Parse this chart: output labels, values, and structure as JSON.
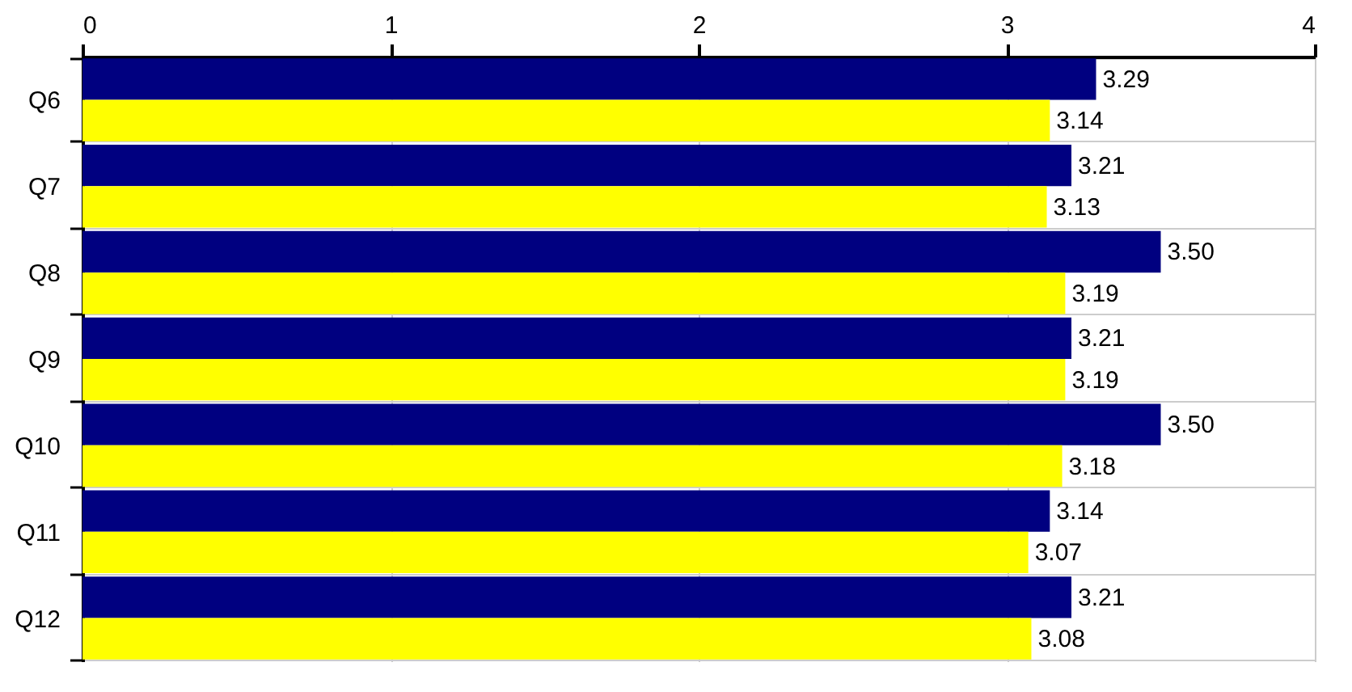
{
  "chart_data": {
    "type": "bar",
    "orientation": "horizontal",
    "categories": [
      "Q6",
      "Q7",
      "Q8",
      "Q9",
      "Q10",
      "Q11",
      "Q12"
    ],
    "series": [
      {
        "color": "#000080",
        "values": [
          3.29,
          3.21,
          3.5,
          3.21,
          3.5,
          3.14,
          3.21
        ],
        "value_labels": [
          "3.29",
          "3.21",
          "3.50",
          "3.21",
          "3.50",
          "3.14",
          "3.21"
        ]
      },
      {
        "color": "#ffff00",
        "values": [
          3.14,
          3.13,
          3.19,
          3.19,
          3.18,
          3.07,
          3.08
        ],
        "value_labels": [
          "3.14",
          "3.13",
          "3.19",
          "3.19",
          "3.18",
          "3.07",
          "3.08"
        ]
      }
    ],
    "xlim": [
      0,
      4
    ],
    "xticks": [
      0,
      1,
      2,
      3,
      4
    ],
    "grid": true
  }
}
